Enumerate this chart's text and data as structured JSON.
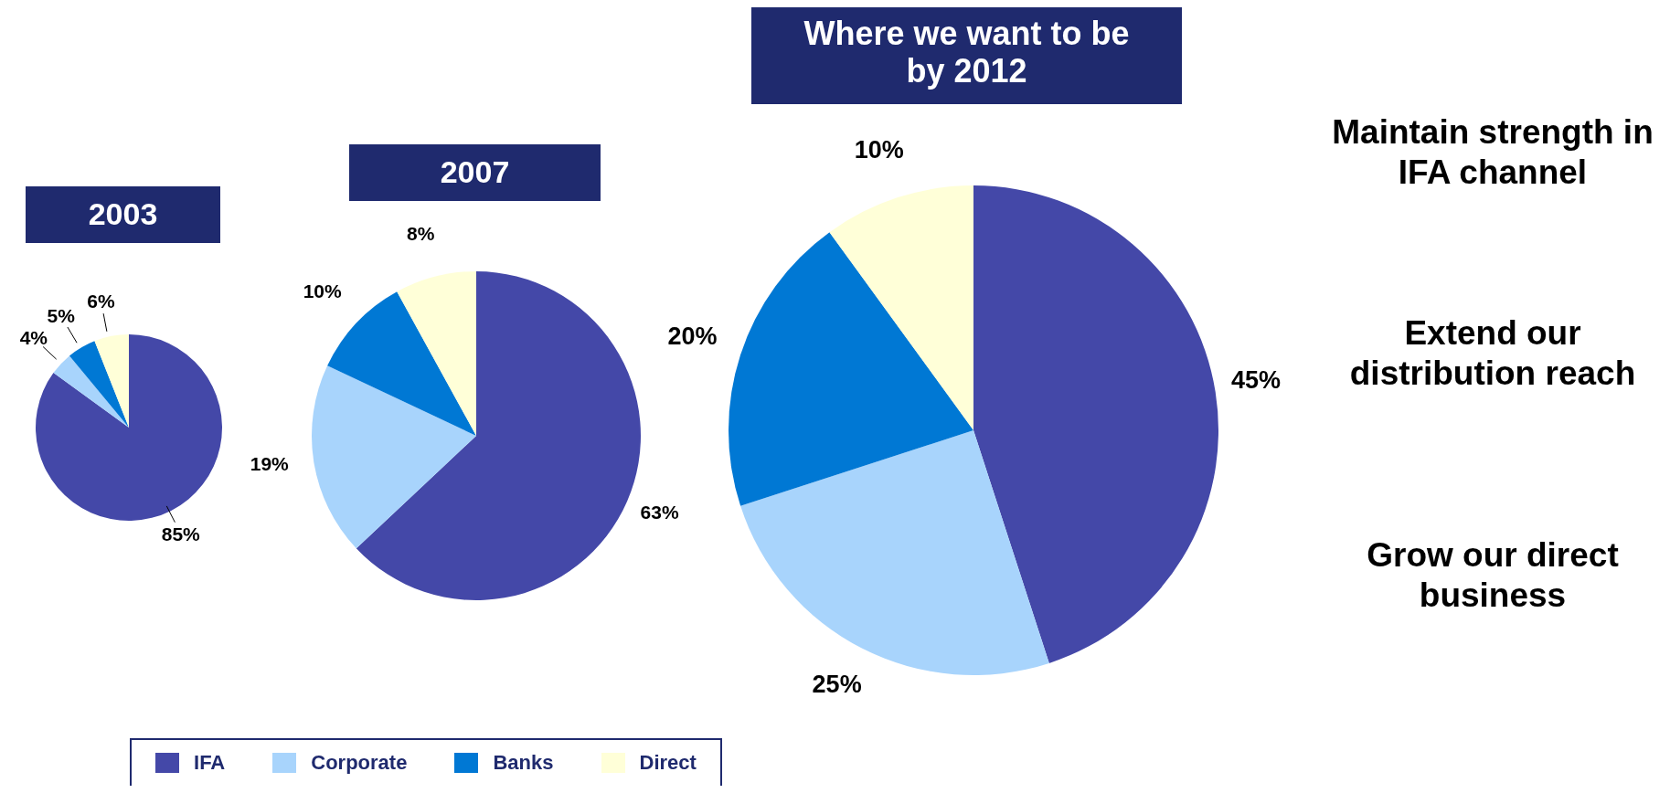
{
  "chart_data": [
    {
      "type": "pie",
      "title": "2003",
      "categories": [
        "IFA",
        "Corporate",
        "Banks",
        "Direct"
      ],
      "values": [
        85,
        4,
        5,
        6
      ],
      "value_labels": [
        "85%",
        "4%",
        "5%",
        "6%"
      ],
      "colors": [
        "#4448a8",
        "#a8d4fc",
        "#0078d4",
        "#ffffd8"
      ],
      "legend": "bottom"
    },
    {
      "type": "pie",
      "title": "2007",
      "values": [
        63,
        19,
        10,
        8
      ],
      "value_labels": [
        "63%",
        "19%",
        "10%",
        "8%"
      ],
      "colors": [
        "#4448a8",
        "#a8d4fc",
        "#0078d4",
        "#ffffd8"
      ]
    },
    {
      "type": "pie",
      "title": "Where we want to be by 2012",
      "values": [
        45,
        25,
        20,
        10
      ],
      "value_labels": [
        "45%",
        "25%",
        "20%",
        "10%"
      ],
      "colors": [
        "#4448a8",
        "#a8d4fc",
        "#0078d4",
        "#ffffd8"
      ]
    },
    {
      "type": "other",
      "annotations": [
        "Maintain strength in IFA channel",
        "Extend our distribution reach",
        "Grow our direct business"
      ]
    }
  ]
}
